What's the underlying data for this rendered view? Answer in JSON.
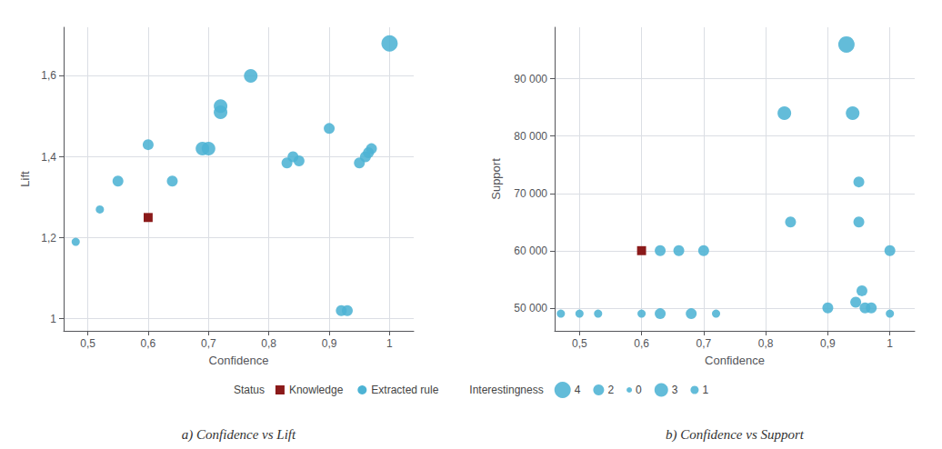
{
  "chart_data": [
    {
      "type": "scatter",
      "title": "a) Confidence vs Lift",
      "xlabel": "Confidence",
      "ylabel": "Lift",
      "xlim": [
        0.46,
        1.04
      ],
      "ylim": [
        0.97,
        1.72
      ],
      "xticks": [
        {
          "value": 0.5,
          "label": "0,5"
        },
        {
          "value": 0.6,
          "label": "0,6"
        },
        {
          "value": 0.7,
          "label": "0,7"
        },
        {
          "value": 0.8,
          "label": "0,8"
        },
        {
          "value": 0.9,
          "label": "0,9"
        },
        1
      ],
      "yticks": [
        1,
        {
          "value": 1.2,
          "label": "1,2"
        },
        {
          "value": 1.4,
          "label": "1,4"
        },
        {
          "value": 1.6,
          "label": "1,6"
        }
      ],
      "grid": true,
      "legend": "bottom",
      "legend_title": "Status",
      "size_legend_title": "Interestingness",
      "size_legend_levels": [
        4,
        2,
        0,
        3,
        1
      ],
      "series": [
        {
          "name": "Extracted rule",
          "color": "#4db3d4",
          "marker": "circle",
          "x": [
            0.48,
            0.52,
            0.55,
            0.6,
            0.64,
            0.69,
            0.7,
            0.72,
            0.72,
            0.77,
            0.83,
            0.84,
            0.85,
            0.9,
            0.92,
            0.93,
            0.95,
            0.96,
            0.965,
            0.97,
            1.0
          ],
          "y": [
            1.19,
            1.27,
            1.34,
            1.43,
            1.34,
            1.42,
            1.42,
            1.51,
            1.525,
            1.6,
            1.385,
            1.4,
            1.39,
            1.47,
            1.02,
            1.02,
            1.385,
            1.4,
            1.41,
            1.42,
            1.68
          ],
          "interestingness": [
            1,
            1,
            2,
            2,
            2,
            3,
            3,
            3,
            3,
            3,
            2,
            2,
            2,
            2,
            2,
            2,
            2,
            2,
            2,
            2,
            4
          ]
        },
        {
          "name": "Knowledge",
          "color": "#8b1a1a",
          "marker": "square",
          "x": [
            0.6
          ],
          "y": [
            1.25
          ],
          "interestingness": [
            1
          ]
        }
      ]
    },
    {
      "type": "scatter",
      "title": "b) Confidence vs Support",
      "xlabel": "Confidence",
      "ylabel": "Support",
      "xlim": [
        0.46,
        1.04
      ],
      "ylim": [
        46000,
        99000
      ],
      "xticks": [
        {
          "value": 0.5,
          "label": "0,5"
        },
        {
          "value": 0.6,
          "label": "0,6"
        },
        {
          "value": 0.7,
          "label": "0,7"
        },
        {
          "value": 0.8,
          "label": "0,8"
        },
        {
          "value": 0.9,
          "label": "0,9"
        },
        1
      ],
      "yticks": [
        {
          "value": 50000,
          "label": "50 000"
        },
        {
          "value": 60000,
          "label": "60 000"
        },
        {
          "value": 70000,
          "label": "70 000"
        },
        {
          "value": 80000,
          "label": "80 000"
        },
        {
          "value": 90000,
          "label": "90 000"
        }
      ],
      "grid": true,
      "series": [
        {
          "name": "Extracted rule",
          "color": "#4db3d4",
          "marker": "circle",
          "x": [
            0.47,
            0.5,
            0.53,
            0.6,
            0.63,
            0.63,
            0.66,
            0.68,
            0.7,
            0.72,
            0.83,
            0.84,
            0.9,
            0.93,
            0.94,
            0.95,
            0.95,
            0.945,
            0.955,
            0.96,
            0.97,
            1.0,
            1.0
          ],
          "y": [
            49000,
            49000,
            49000,
            49000,
            60000,
            49000,
            60000,
            49000,
            60000,
            49000,
            84000,
            65000,
            50000,
            96000,
            84000,
            72000,
            65000,
            51000,
            53000,
            50000,
            50000,
            60000,
            49000
          ],
          "interestingness": [
            1,
            1,
            1,
            1,
            2,
            2,
            2,
            2,
            2,
            1,
            3,
            2,
            2,
            4,
            3,
            2,
            2,
            2,
            2,
            2,
            2,
            2,
            1
          ]
        },
        {
          "name": "Knowledge",
          "color": "#8b1a1a",
          "marker": "square",
          "x": [
            0.6
          ],
          "y": [
            60000
          ],
          "interestingness": [
            1
          ]
        }
      ]
    }
  ]
}
